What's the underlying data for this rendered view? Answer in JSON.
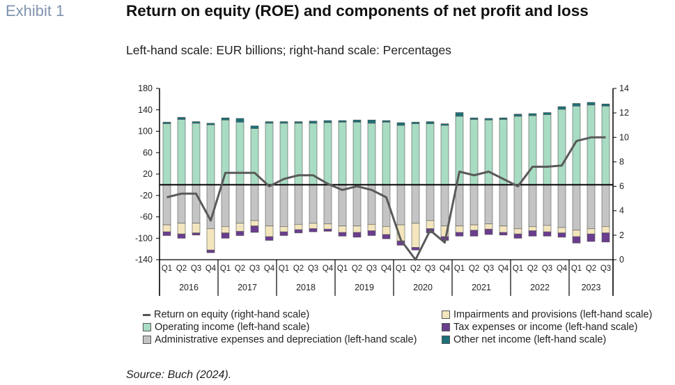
{
  "header": {
    "exhibit": "Exhibit 1",
    "title": "Return on equity (ROE) and components of net profit and loss",
    "subtitle": "Left-hand scale: EUR billions; right-hand scale: Percentages"
  },
  "source": "Source: Buch (2024).",
  "colors": {
    "operating_income": "#a8dcc3",
    "admin_expenses": "#c4c4c4",
    "impairments": "#f3e5bd",
    "tax": "#6a3d8f",
    "other_net": "#1d7078",
    "roe_line": "#5a5a5a",
    "axis": "#000000"
  },
  "chart_data": {
    "type": "bar",
    "stacked": true,
    "left_axis": {
      "label": "",
      "range": [
        -140,
        180
      ],
      "ticks": [
        -140,
        -100,
        -60,
        -20,
        20,
        60,
        100,
        140,
        180
      ]
    },
    "right_axis": {
      "label": "",
      "range": [
        0,
        14
      ],
      "ticks": [
        0,
        2,
        4,
        6,
        8,
        10,
        12,
        14
      ]
    },
    "years": [
      "2016",
      "2017",
      "2018",
      "2019",
      "2020",
      "2021",
      "2022",
      "2023"
    ],
    "categories": [
      "Q1",
      "Q2",
      "Q3",
      "Q4",
      "Q1",
      "Q2",
      "Q3",
      "Q4",
      "Q1",
      "Q2",
      "Q3",
      "Q4",
      "Q1",
      "Q2",
      "Q3",
      "Q4",
      "Q1",
      "Q2",
      "Q3",
      "Q4",
      "Q1",
      "Q2",
      "Q3",
      "Q4",
      "Q1",
      "Q2",
      "Q3",
      "Q4",
      "Q1",
      "Q2",
      "Q3"
    ],
    "series": [
      {
        "name": "Operating income (left-hand scale)",
        "kind": "positive",
        "values": [
          114,
          122,
          115,
          112,
          121,
          117,
          105,
          115,
          115,
          115,
          115,
          116,
          117,
          117,
          115,
          117,
          111,
          114,
          114,
          111,
          128,
          122,
          121,
          122,
          128,
          129,
          131,
          141,
          147,
          149,
          147
        ]
      },
      {
        "name": "Other net income (left-hand scale)",
        "kind": "positive",
        "values": [
          3,
          4,
          3,
          3,
          4,
          7,
          5,
          3,
          3,
          3,
          4,
          4,
          3,
          4,
          6,
          3,
          5,
          3,
          4,
          3,
          7,
          3,
          3,
          3,
          4,
          4,
          4,
          5,
          5,
          5,
          4
        ]
      },
      {
        "name": "Administrative expenses and depreciation (left-hand scale)",
        "kind": "negative",
        "values": [
          -75,
          -72,
          -72,
          -82,
          -78,
          -72,
          -67,
          -77,
          -78,
          -74,
          -72,
          -73,
          -77,
          -77,
          -74,
          -78,
          -75,
          -72,
          -67,
          -77,
          -77,
          -75,
          -73,
          -77,
          -82,
          -78,
          -76,
          -80,
          -85,
          -82,
          -78
        ]
      },
      {
        "name": "Impairments and provisions (left-hand scale)",
        "kind": "negative",
        "values": [
          -13,
          -20,
          -18,
          -40,
          -12,
          -15,
          -10,
          -20,
          -10,
          -10,
          -10,
          -10,
          -12,
          -12,
          -12,
          -15,
          -30,
          -45,
          -15,
          -20,
          -12,
          -10,
          -10,
          -12,
          -10,
          -8,
          -12,
          -10,
          -12,
          -10,
          -12
        ]
      },
      {
        "name": "Tax expenses or income (left-hand scale)",
        "kind": "negative",
        "values": [
          -7,
          -8,
          -4,
          -5,
          -10,
          -8,
          -12,
          -7,
          -7,
          -6,
          -6,
          -4,
          -7,
          -9,
          -9,
          -8,
          -8,
          -5,
          -8,
          -7,
          -7,
          -11,
          -10,
          -5,
          -8,
          -10,
          -8,
          -8,
          -12,
          -14,
          -17
        ]
      },
      {
        "name": "Return on equity (right-hand scale)",
        "kind": "line",
        "axis": "right",
        "values": [
          5.1,
          5.4,
          5.4,
          3.2,
          7.1,
          7.1,
          7.1,
          6.0,
          6.6,
          6.9,
          6.9,
          6.2,
          5.7,
          6.0,
          5.7,
          5.1,
          1.6,
          0.0,
          2.4,
          1.4,
          7.2,
          6.9,
          7.2,
          6.6,
          6.0,
          7.6,
          7.6,
          7.7,
          9.7,
          10.0,
          10.0
        ]
      }
    ]
  },
  "legend": {
    "roe": "Return on equity (right-hand scale)",
    "operating": "Operating income (left-hand scale)",
    "admin": "Administrative expenses and depreciation (left-hand scale)",
    "impairments": "Impairments and provisions (left-hand scale)",
    "tax": "Tax expenses or income (left-hand scale)",
    "other": "Other net income (left-hand scale)"
  }
}
